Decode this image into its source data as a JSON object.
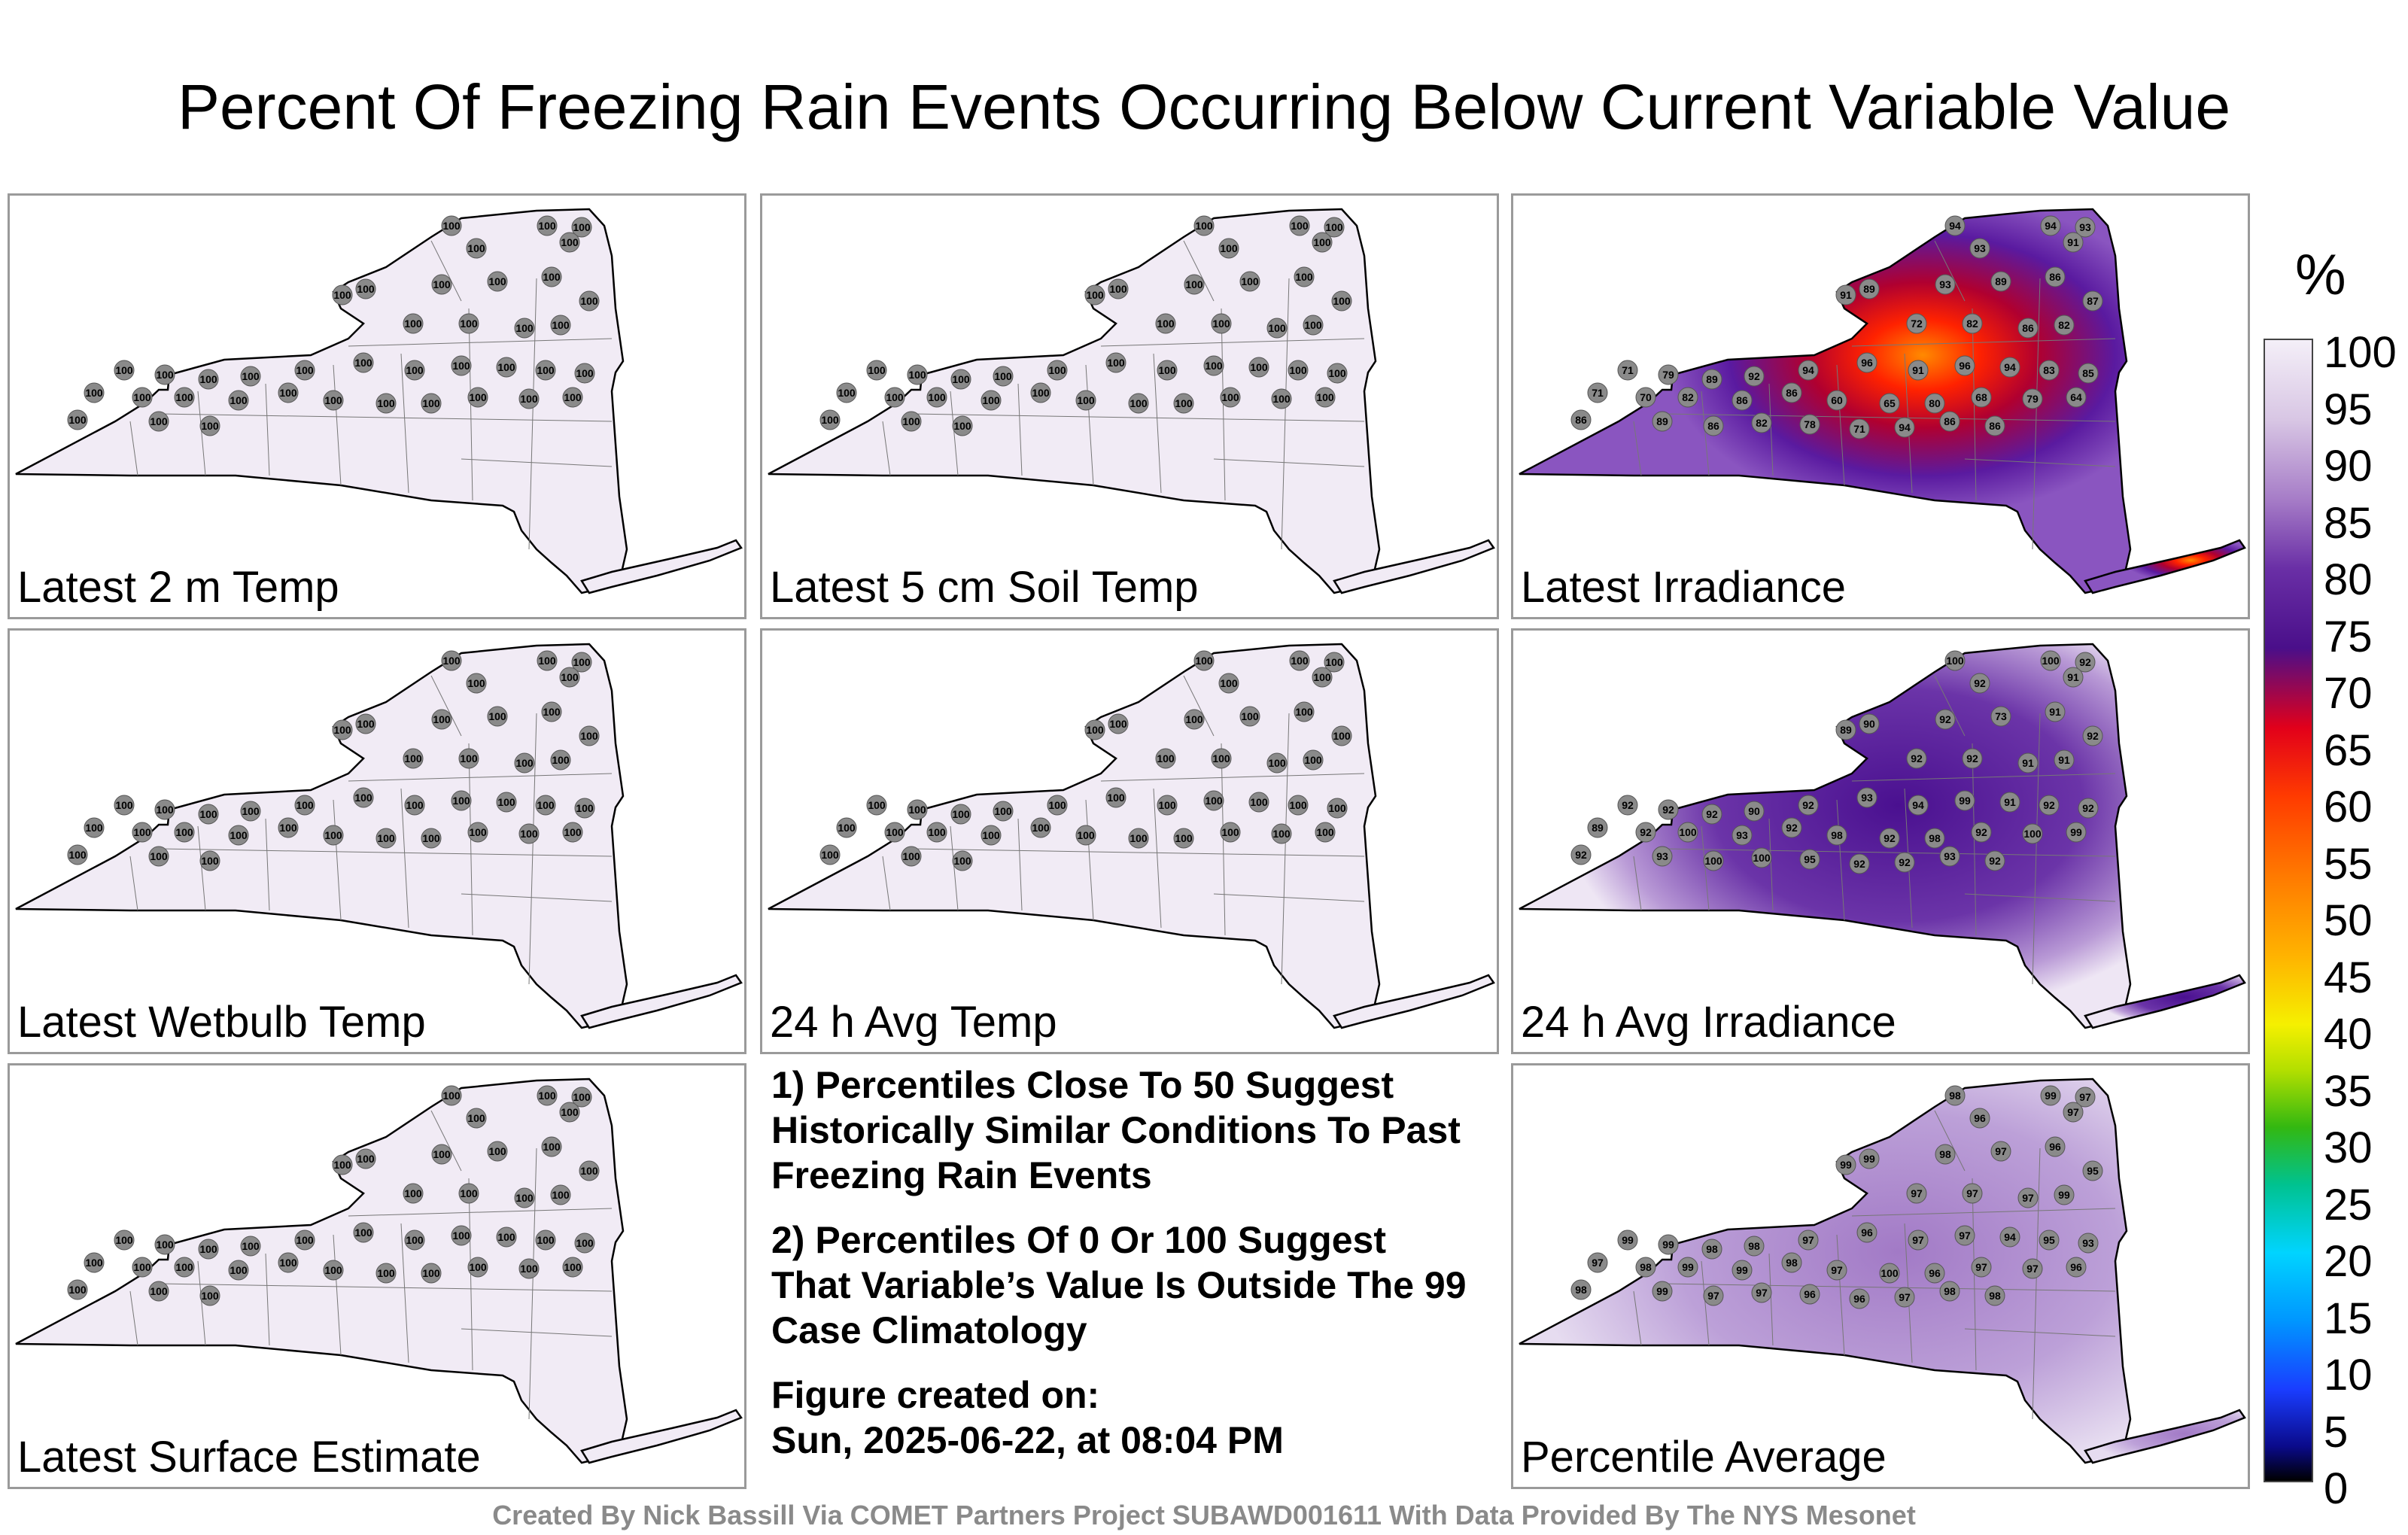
{
  "title": "Percent Of Freezing Rain Events Occurring Below Current Variable Value",
  "panels": [
    {
      "label": "Latest 2 m Temp",
      "fill": "uniform",
      "values": [
        100,
        100,
        100,
        100,
        100,
        100,
        100,
        100,
        100,
        100,
        100,
        100,
        100,
        100,
        100,
        100,
        100,
        100,
        100,
        100,
        100,
        100,
        100,
        100,
        100,
        100,
        100,
        100,
        100,
        100,
        100,
        100,
        100,
        100,
        100,
        100,
        100,
        100,
        100,
        100
      ]
    },
    {
      "label": "Latest 5 cm Soil Temp",
      "fill": "uniform",
      "values": [
        100,
        100,
        100,
        100,
        100,
        100,
        100,
        100,
        100,
        100,
        100,
        100,
        100,
        100,
        100,
        100,
        100,
        100,
        100,
        100,
        100,
        100,
        100,
        100,
        100,
        100,
        100,
        100,
        100,
        100,
        100,
        100,
        100,
        100,
        100,
        100,
        100,
        100,
        100,
        100
      ]
    },
    {
      "label": "Latest Irradiance",
      "fill": "irradiance",
      "values": [
        94,
        94,
        93,
        93,
        91,
        89,
        91,
        93,
        89,
        86,
        87,
        72,
        82,
        86,
        82,
        71,
        79,
        89,
        92,
        94,
        96,
        91,
        96,
        94,
        83,
        85,
        71,
        70,
        82,
        86,
        86,
        60,
        65,
        80,
        68,
        79,
        64,
        86,
        89,
        86,
        82,
        78,
        71,
        94,
        86,
        86
      ]
    },
    {
      "label": "Latest Wetbulb Temp",
      "fill": "uniform",
      "values": [
        100,
        100,
        100,
        100,
        100,
        100,
        100,
        100,
        100,
        100,
        100,
        100,
        100,
        100,
        100,
        100,
        100,
        100,
        100,
        100,
        100,
        100,
        100,
        100,
        100,
        100,
        100,
        100,
        100,
        100,
        100,
        100,
        100,
        100,
        100,
        100,
        100,
        100,
        100,
        100
      ]
    },
    {
      "label": "24 h Avg Temp",
      "fill": "uniform",
      "values": [
        100,
        100,
        100,
        100,
        100,
        100,
        100,
        100,
        100,
        100,
        100,
        100,
        100,
        100,
        100,
        100,
        100,
        100,
        100,
        100,
        100,
        100,
        100,
        100,
        100,
        100,
        100,
        100,
        100,
        100,
        100,
        100,
        100,
        100,
        100,
        100,
        100,
        100,
        100,
        100
      ]
    },
    {
      "label": "24 h Avg Irradiance",
      "fill": "avg-irradiance",
      "values": [
        100,
        100,
        92,
        92,
        91,
        90,
        89,
        92,
        73,
        91,
        92,
        92,
        92,
        91,
        91,
        92,
        92,
        92,
        90,
        92,
        93,
        94,
        99,
        91,
        92,
        92,
        89,
        92,
        100,
        93,
        92,
        98,
        92,
        98,
        92,
        100,
        99,
        92,
        93,
        100,
        100,
        95,
        92,
        92,
        93,
        92
      ]
    },
    {
      "label": "Latest Surface Estimate",
      "fill": "uniform",
      "values": [
        100,
        100,
        100,
        100,
        100,
        100,
        100,
        100,
        100,
        100,
        100,
        100,
        100,
        100,
        100,
        100,
        100,
        100,
        100,
        100,
        100,
        100,
        100,
        100,
        100,
        100,
        100,
        100,
        100,
        100,
        100,
        100,
        100,
        100,
        100,
        100,
        100,
        100,
        100,
        100
      ]
    },
    {
      "label": "Percentile Average",
      "fill": "average",
      "values": [
        98,
        99,
        97,
        96,
        97,
        99,
        99,
        98,
        97,
        96,
        95,
        97,
        97,
        97,
        99,
        99,
        99,
        98,
        98,
        97,
        96,
        97,
        97,
        94,
        95,
        93,
        97,
        98,
        99,
        99,
        98,
        97,
        100,
        96,
        97,
        97,
        96,
        98,
        99,
        97,
        97,
        96,
        96,
        97,
        98,
        98
      ]
    }
  ],
  "notes": [
    "1) Percentiles Close To 50 Suggest Historically Similar Conditions To Past Freezing Rain Events",
    "2) Percentiles Of 0 Or 100 Suggest That Variable’s Value Is Outside The 99 Case Climatology"
  ],
  "created_label": "Figure created on:",
  "created_value": "Sun, 2025-06-22, at 08:04 PM",
  "colorbar": {
    "unit": "%",
    "ticks": [
      "100",
      "95",
      "90",
      "85",
      "80",
      "75",
      "70",
      "65",
      "60",
      "55",
      "50",
      "45",
      "40",
      "35",
      "30",
      "25",
      "20",
      "15",
      "10",
      "5",
      "0"
    ]
  },
  "colors": {
    "uniform": "#f1ebf5",
    "marker": "#8a8a8a"
  },
  "credit": "Created By Nick Bassill Via COMET Partners Project SUBAWD001611 With Data Provided By The NYS Mesonet"
}
